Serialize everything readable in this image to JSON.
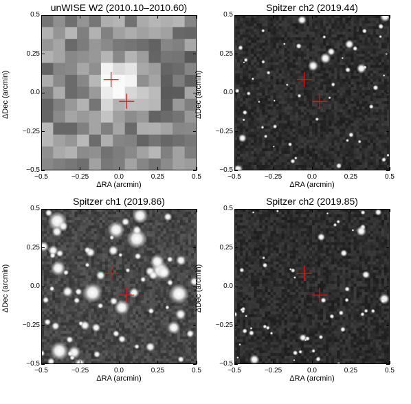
{
  "figure": {
    "panels": [
      {
        "id": "unwise-w2",
        "title": "unWISE W2 (2010.10–2010.60)",
        "style": "coarse",
        "xlabel": "ΔRA (arcmin)",
        "ylabel": "ΔDec (arcmin)"
      },
      {
        "id": "spitzer-ch2-2019-44",
        "title": "Spitzer ch2 (2019.44)",
        "style": "dark",
        "xlabel": "ΔRA (arcmin)",
        "ylabel": "ΔDec (arcmin)"
      },
      {
        "id": "spitzer-ch1-2019-86",
        "title": "Spitzer ch1 (2019.86)",
        "style": "bright",
        "xlabel": "ΔRA (arcmin)",
        "ylabel": "ΔDec (arcmin)"
      },
      {
        "id": "spitzer-ch2-2019-85",
        "title": "Spitzer ch2 (2019.85)",
        "style": "dark",
        "xlabel": "ΔRA (arcmin)",
        "ylabel": "ΔDec (arcmin)"
      }
    ],
    "axes": {
      "xlim": [
        -0.5,
        0.5
      ],
      "ylim": [
        -0.5,
        0.5
      ],
      "xticks": [
        -0.5,
        -0.25,
        0.0,
        0.25,
        0.5
      ],
      "xtick_labels": [
        "−0.5",
        "−0.25",
        "0.0",
        "0.25",
        "0.5"
      ],
      "yticks": [
        -0.5,
        -0.25,
        0.0,
        0.25,
        0.5
      ],
      "ytick_labels": [
        "−0.5",
        "−0.25",
        "0.0",
        "0.25",
        "0.5"
      ]
    },
    "markers": {
      "color": "#e8101a",
      "crosses": [
        {
          "name": "earlier-position",
          "x": -0.05,
          "y": 0.085
        },
        {
          "name": "later-position",
          "x": 0.05,
          "y": -0.055
        }
      ]
    }
  }
}
